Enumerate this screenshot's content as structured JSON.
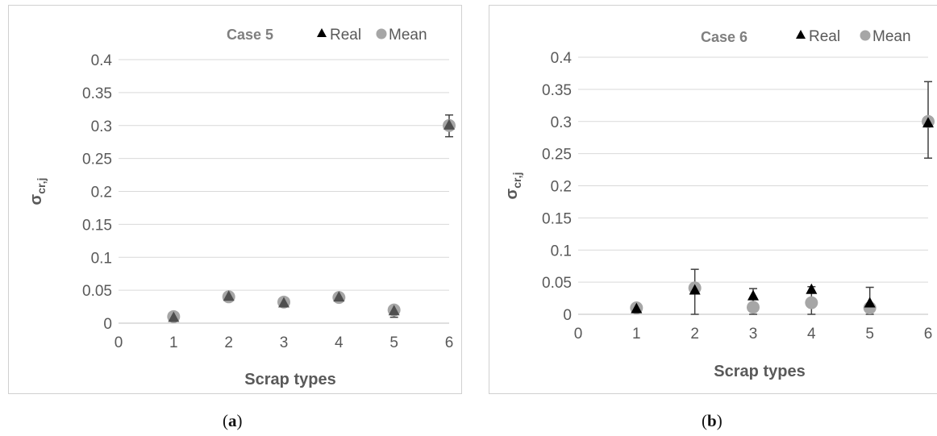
{
  "chart_data": [
    {
      "type": "scatter",
      "title": "Case 5",
      "xlabel": "Scrap types",
      "ylabel_main": "σ",
      "ylabel_sub": "cr,j",
      "xlim": [
        0,
        6
      ],
      "ylim": [
        0,
        0.4
      ],
      "xticks": [
        "0",
        "1",
        "2",
        "3",
        "4",
        "5",
        "6"
      ],
      "yticks": [
        "0",
        "0.05",
        "0.1",
        "0.15",
        "0.2",
        "0.25",
        "0.3",
        "0.35",
        "0.4"
      ],
      "grid": "horizontal",
      "legend_position": "top-right",
      "series": [
        {
          "name": "Real",
          "marker": "triangle",
          "color": "#404040",
          "x": [
            1,
            2,
            3,
            4,
            5,
            6
          ],
          "y": [
            0.008,
            0.04,
            0.03,
            0.039,
            0.018,
            0.3
          ]
        },
        {
          "name": "Mean",
          "marker": "circle",
          "color": "#a6a6a6",
          "x": [
            1,
            2,
            3,
            4,
            5,
            6
          ],
          "y": [
            0.01,
            0.04,
            0.032,
            0.039,
            0.02,
            0.3
          ],
          "error_low": [
            0.003,
            0.003,
            0.003,
            0.003,
            0.011,
            0.017
          ],
          "error_high": [
            0.003,
            0.003,
            0.003,
            0.003,
            0.003,
            0.016
          ]
        }
      ]
    },
    {
      "type": "scatter",
      "title": "Case 6",
      "xlabel": "Scrap types",
      "ylabel_main": "σ",
      "ylabel_sub": "cr,j",
      "xlim": [
        0,
        6
      ],
      "ylim": [
        0,
        0.4
      ],
      "xticks": [
        "0",
        "1",
        "2",
        "3",
        "4",
        "5",
        "6"
      ],
      "yticks": [
        "0",
        "0.05",
        "0.1",
        "0.15",
        "0.2",
        "0.25",
        "0.3",
        "0.35",
        "0.4"
      ],
      "grid": "horizontal",
      "legend_position": "top-right",
      "series": [
        {
          "name": "Real",
          "marker": "triangle",
          "color": "#000000",
          "x": [
            1,
            2,
            3,
            4,
            5,
            6
          ],
          "y": [
            0.008,
            0.037,
            0.028,
            0.038,
            0.017,
            0.297
          ]
        },
        {
          "name": "Mean",
          "marker": "circle",
          "color": "#a6a6a6",
          "x": [
            1,
            2,
            3,
            4,
            5,
            6
          ],
          "y": [
            0.01,
            0.041,
            0.011,
            0.018,
            0.01,
            0.3
          ],
          "error_low": [
            0.003,
            0.041,
            0.011,
            0.018,
            0.01,
            0.057
          ],
          "error_high": [
            0.003,
            0.029,
            0.029,
            0.025,
            0.032,
            0.062
          ]
        }
      ]
    }
  ],
  "captions": [
    "a",
    "b"
  ]
}
